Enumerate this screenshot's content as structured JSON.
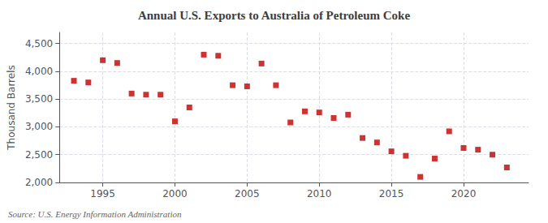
{
  "chart_data": {
    "type": "scatter",
    "title": "Annual U.S. Exports to Australia of Petroleum Coke",
    "ylabel": "Thousand Barrels",
    "annotation": "Source: U.S. Energy Information Administration",
    "x": [
      1993,
      1994,
      1995,
      1996,
      1997,
      1998,
      1999,
      2000,
      2001,
      2002,
      2003,
      2004,
      2005,
      2006,
      2007,
      2008,
      2009,
      2010,
      2011,
      2012,
      2013,
      2014,
      2015,
      2016,
      2017,
      2018,
      2019,
      2020,
      2021,
      2022,
      2023
    ],
    "values": [
      3830,
      3800,
      4200,
      4150,
      3600,
      3580,
      3580,
      3100,
      3350,
      4300,
      4280,
      3750,
      3730,
      4140,
      3750,
      3080,
      3280,
      3260,
      3160,
      3220,
      2800,
      2720,
      2560,
      2480,
      2100,
      2430,
      2920,
      2620,
      2590,
      2500,
      2270
    ],
    "color": "#c00000",
    "marker": "square",
    "xlim": [
      1992.0,
      2024.5
    ],
    "xticks": [
      1995,
      2000,
      2005,
      2010,
      2015,
      2020
    ],
    "ylim": [
      2000,
      4700
    ],
    "yticks": [
      {
        "value": 2000,
        "label": "2,000"
      },
      {
        "value": 2500,
        "label": "2,500"
      },
      {
        "value": 3000,
        "label": "3,000"
      },
      {
        "value": 3500,
        "label": "3,500"
      },
      {
        "value": 4000,
        "label": "4,000"
      },
      {
        "value": 4500,
        "label": "4,500"
      }
    ],
    "grid": true
  }
}
